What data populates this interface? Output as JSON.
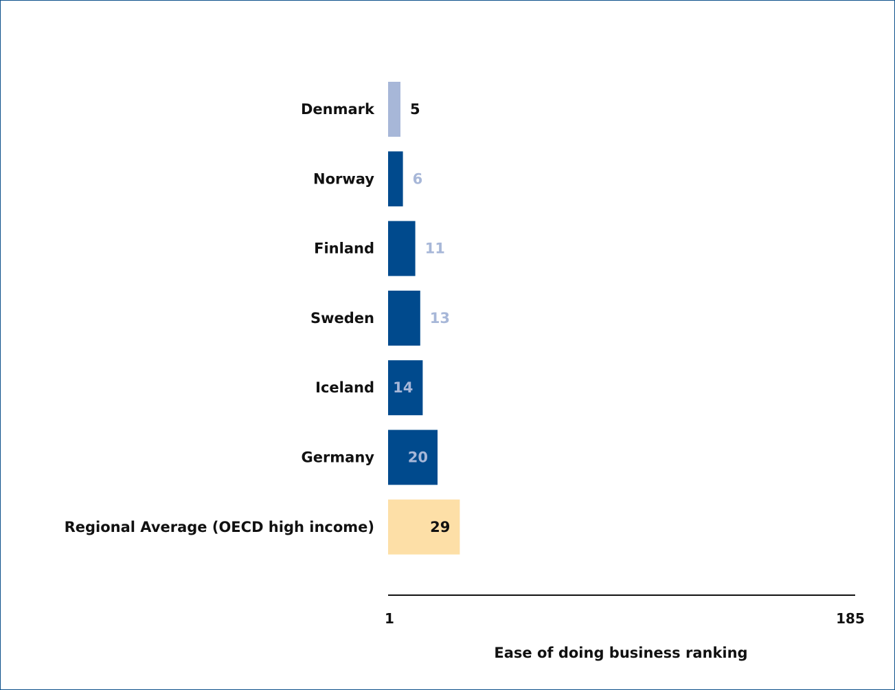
{
  "chart_data": {
    "type": "bar",
    "orientation": "horizontal",
    "categories": [
      "Denmark",
      "Norway",
      "Finland",
      "Sweden",
      "Iceland",
      "Germany",
      "Regional Average (OECD high income)"
    ],
    "values": [
      5,
      6,
      11,
      13,
      14,
      20,
      29
    ],
    "bar_colors": [
      "#a7b7d8",
      "#004a8d",
      "#004a8d",
      "#004a8d",
      "#004a8d",
      "#004a8d",
      "#fddfa7"
    ],
    "value_label_colors": [
      "#111111",
      "#a7b7d8",
      "#a7b7d8",
      "#a7b7d8",
      "#a7b7d8",
      "#a7b7d8",
      "#111111"
    ],
    "value_label_inside": [
      false,
      false,
      false,
      false,
      true,
      true,
      true
    ],
    "xlim": [
      1,
      185
    ],
    "x_ticks": [
      "1",
      "185"
    ],
    "xlabel": "Ease of doing business ranking",
    "title": "",
    "grid": false
  }
}
